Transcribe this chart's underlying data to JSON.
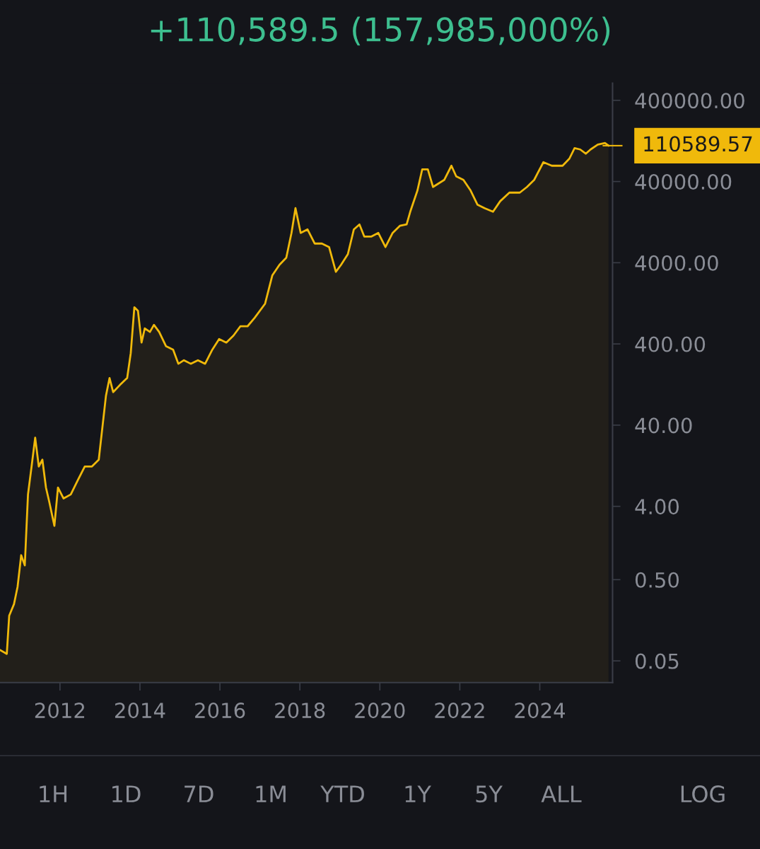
{
  "chart_data": {
    "type": "area",
    "title": "+110,589.5 (157,985,000%)",
    "log": true,
    "grid": false,
    "marker": "none",
    "line_style": "solid",
    "x": [
      2010.5,
      2010.67,
      2010.73,
      2010.85,
      2010.94,
      2011.03,
      2011.12,
      2011.2,
      2011.29,
      2011.38,
      2011.47,
      2011.56,
      2011.65,
      2011.73,
      2011.86,
      2011.95,
      2012.09,
      2012.27,
      2012.44,
      2012.62,
      2012.8,
      2012.97,
      2013.15,
      2013.24,
      2013.33,
      2013.5,
      2013.68,
      2013.77,
      2013.86,
      2013.95,
      2014.04,
      2014.12,
      2014.25,
      2014.35,
      2014.48,
      2014.65,
      2014.83,
      2014.96,
      2015.1,
      2015.27,
      2015.45,
      2015.63,
      2015.81,
      2015.98,
      2016.16,
      2016.34,
      2016.51,
      2016.69,
      2016.87,
      2017.13,
      2017.31,
      2017.49,
      2017.66,
      2017.79,
      2017.89,
      2018.02,
      2018.19,
      2018.37,
      2018.55,
      2018.73,
      2018.9,
      2019.03,
      2019.2,
      2019.35,
      2019.49,
      2019.61,
      2019.79,
      2019.96,
      2020.14,
      2020.32,
      2020.5,
      2020.67,
      2020.76,
      2020.94,
      2021.06,
      2021.2,
      2021.33,
      2021.47,
      2021.61,
      2021.79,
      2021.91,
      2022.09,
      2022.27,
      2022.44,
      2022.62,
      2022.83,
      2023.01,
      2023.24,
      2023.5,
      2023.68,
      2023.86,
      2024.09,
      2024.3,
      2024.57,
      2024.74,
      2024.87,
      2025.01,
      2025.15,
      2025.27,
      2025.45,
      2025.63,
      2025.72
    ],
    "series": [
      {
        "color": "#f0b90b",
        "values": [
          0.068,
          0.061,
          0.18,
          0.25,
          0.41,
          1.0,
          0.75,
          5.6,
          12.4,
          28,
          12.4,
          15,
          6.8,
          4.6,
          2.3,
          6.8,
          5.0,
          5.6,
          8.3,
          12.4,
          12.4,
          15,
          92,
          152,
          102,
          125,
          152,
          308,
          1130,
          1025,
          416,
          621,
          562,
          687,
          562,
          376,
          340,
          228,
          252,
          228,
          252,
          228,
          340,
          459,
          416,
          508,
          659,
          659,
          839,
          1253,
          2790,
          3776,
          4613,
          9310,
          18800,
          9310,
          10300,
          6890,
          6890,
          6240,
          3090,
          3776,
          5100,
          10300,
          11860,
          8410,
          8410,
          9310,
          6240,
          9310,
          11380,
          11860,
          16980,
          31000,
          56600,
          56600,
          34300,
          37900,
          41900,
          62600,
          46300,
          41900,
          31000,
          20800,
          18800,
          16980,
          22900,
          29200,
          29200,
          34300,
          41900,
          69200,
          62600,
          62600,
          76500,
          103000,
          99300,
          88100,
          99300,
          114000,
          119000,
          110590
        ]
      }
    ],
    "xlim": [
      2010.5,
      2025.82
    ],
    "xticks": [
      2012,
      2014,
      2016,
      2018,
      2020,
      2022,
      2024
    ],
    "ylim": [
      0.027,
      650000
    ],
    "yticks": [
      {
        "value": 0.05,
        "label": "0.05"
      },
      {
        "value": 0.5,
        "label": "0.50"
      },
      {
        "value": 4,
        "label": "4.00"
      },
      {
        "value": 40,
        "label": "40.00"
      },
      {
        "value": 400,
        "label": "400.00"
      },
      {
        "value": 4000,
        "label": "4000.00"
      },
      {
        "value": 40000,
        "label": "40000.00"
      },
      {
        "value": 400000,
        "label": "400000.00"
      }
    ],
    "ref_lines": [
      {
        "axis": "y",
        "value": 110589.57,
        "label": "110589.57",
        "color": "#f0b90b"
      }
    ],
    "annotations": [
      "1H",
      "1D",
      "7D",
      "1M",
      "YTD",
      "1Y",
      "5Y",
      "ALL",
      "LOG"
    ]
  }
}
